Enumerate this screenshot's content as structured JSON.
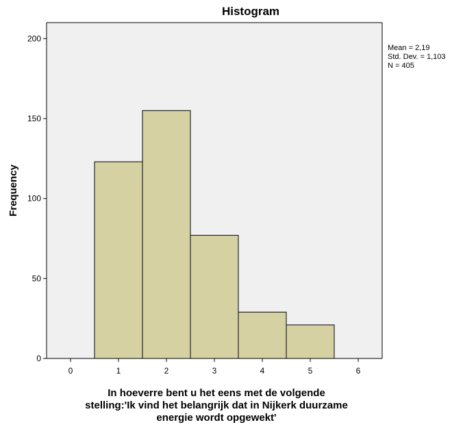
{
  "chart_data": {
    "type": "bar",
    "title": "Histogram",
    "xlabel_lines": [
      "In hoeverre bent u het eens met de volgende",
      "stelling:'Ik vind het belangrijk dat in Nijkerk duurzame",
      "energie wordt opgewekt'"
    ],
    "ylabel": "Frequency",
    "bins": [
      {
        "center": 1,
        "value": 123
      },
      {
        "center": 2,
        "value": 155
      },
      {
        "center": 3,
        "value": 77
      },
      {
        "center": 4,
        "value": 29
      },
      {
        "center": 5,
        "value": 21
      }
    ],
    "bin_width": 1,
    "xlim": [
      -0.5,
      6.5
    ],
    "ylim": [
      0,
      210
    ],
    "xticks": [
      0,
      1,
      2,
      3,
      4,
      5,
      6
    ],
    "yticks": [
      0,
      50,
      100,
      150,
      200
    ],
    "grid": false,
    "legend": "none",
    "stats_lines": [
      "Mean = 2,19",
      "Std. Dev. = 1,103",
      "N = 405"
    ],
    "colors": {
      "bar_fill": "#d6d1a2",
      "bar_stroke": "#000000",
      "plot_bg": "#f0f0f0",
      "page_bg": "#ffffff"
    }
  }
}
